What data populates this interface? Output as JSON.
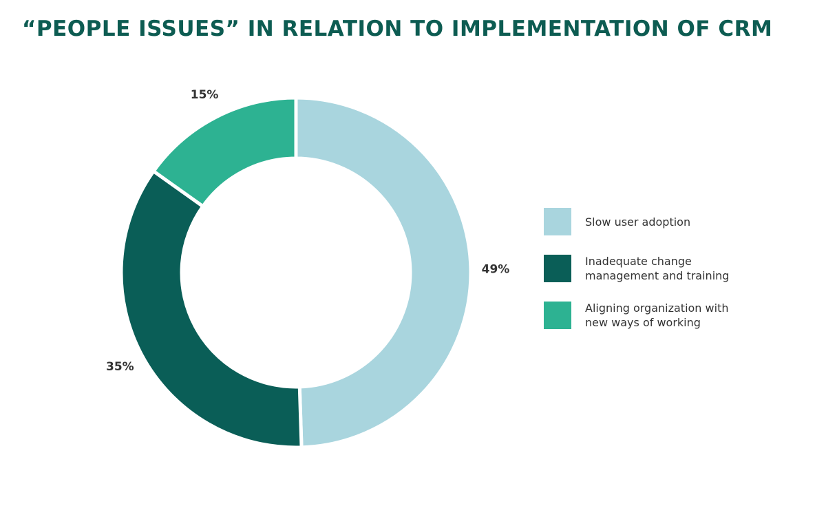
{
  "chart_data": {
    "type": "donut",
    "title": "“PEOPLE ISSUES” IN RELATION TO IMPLEMENTATION OF CRM",
    "categories": [
      "Slow user adoption",
      "Inadequate change management and training",
      "Aligning organization with new ways of working"
    ],
    "values": [
      49,
      35,
      15
    ],
    "value_labels": [
      "49%",
      "35%",
      "15%"
    ],
    "colors": [
      "#a9d5de",
      "#0a5e57",
      "#2db292"
    ]
  }
}
